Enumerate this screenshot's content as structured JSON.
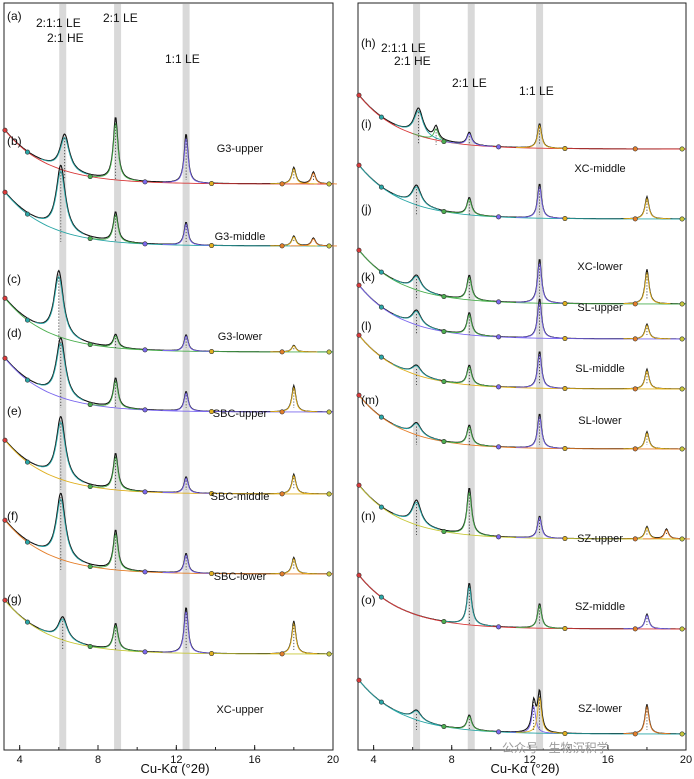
{
  "chart_data": [
    {
      "type": "line",
      "xlabel": "Cu-Kα (°2θ)",
      "xlim": [
        3.2,
        20
      ],
      "xticks": [
        4,
        8,
        12,
        16,
        20
      ],
      "reference_lines": [
        6.2,
        9.0,
        12.5
      ],
      "phase_labels": [
        "2:1:1 LE",
        "2:1 HE",
        "2:1 LE",
        "1:1 LE"
      ],
      "panels": [
        {
          "label": "(a)",
          "sample": "G3-upper",
          "peaks": [
            {
              "x": 6.3,
              "h": 0.55
            },
            {
              "x": 8.9,
              "h": 0.95
            },
            {
              "x": 12.5,
              "h": 0.75
            },
            {
              "x": 18.0,
              "h": 0.25
            },
            {
              "x": 19.0,
              "h": 0.18
            }
          ]
        },
        {
          "label": "(b)",
          "sample": "G3-middle",
          "peaks": [
            {
              "x": 6.1,
              "h": 1.0
            },
            {
              "x": 8.9,
              "h": 0.45
            },
            {
              "x": 12.5,
              "h": 0.35
            },
            {
              "x": 18.0,
              "h": 0.15
            },
            {
              "x": 19.0,
              "h": 0.12
            }
          ]
        },
        {
          "label": "(c)",
          "sample": "G3-lower",
          "peaks": [
            {
              "x": 6.0,
              "h": 1.0
            },
            {
              "x": 8.9,
              "h": 0.2
            },
            {
              "x": 12.5,
              "h": 0.25
            },
            {
              "x": 18.0,
              "h": 0.1
            }
          ]
        },
        {
          "label": "(d)",
          "sample": "SBC-upper",
          "peaks": [
            {
              "x": 6.1,
              "h": 0.9
            },
            {
              "x": 8.9,
              "h": 0.45
            },
            {
              "x": 12.5,
              "h": 0.3
            },
            {
              "x": 18.0,
              "h": 0.4
            }
          ]
        },
        {
          "label": "(e)",
          "sample": "SBC-middle",
          "peaks": [
            {
              "x": 6.1,
              "h": 0.95
            },
            {
              "x": 8.9,
              "h": 0.55
            },
            {
              "x": 12.5,
              "h": 0.25
            },
            {
              "x": 18.0,
              "h": 0.3
            }
          ]
        },
        {
          "label": "(f)",
          "sample": "SBC-lower",
          "peaks": [
            {
              "x": 6.1,
              "h": 1.0
            },
            {
              "x": 8.9,
              "h": 0.6
            },
            {
              "x": 12.5,
              "h": 0.3
            },
            {
              "x": 18.0,
              "h": 0.25
            }
          ]
        },
        {
          "label": "(g)",
          "sample": "XC-upper",
          "peaks": [
            {
              "x": 6.2,
              "h": 0.35
            },
            {
              "x": 8.9,
              "h": 0.4
            },
            {
              "x": 12.5,
              "h": 0.7
            },
            {
              "x": 18.0,
              "h": 0.5
            }
          ]
        },
        {
          "label": "(h)",
          "sample": "",
          "peaks": [
            {
              "x": 6.3,
              "h": 0.55
            },
            {
              "x": 7.2,
              "h": 0.25
            },
            {
              "x": 8.9,
              "h": 0.25
            },
            {
              "x": 12.5,
              "h": 0.5
            }
          ]
        },
        {
          "label": "(i)",
          "sample": "XC-middle",
          "peaks": [
            {
              "x": 6.2,
              "h": 0.4
            },
            {
              "x": 8.9,
              "h": 0.35
            },
            {
              "x": 12.5,
              "h": 0.7
            },
            {
              "x": 18.0,
              "h": 0.45
            }
          ]
        },
        {
          "label": "(j)",
          "sample": "XC-lower",
          "peaks": [
            {
              "x": 6.2,
              "h": 0.3
            },
            {
              "x": 8.9,
              "h": 0.5
            },
            {
              "x": 12.5,
              "h": 0.9
            },
            {
              "x": 18.0,
              "h": 0.7
            }
          ]
        },
        {
          "label": "(k)",
          "sample": "SL-upper",
          "peaks": [
            {
              "x": 6.2,
              "h": 0.3
            },
            {
              "x": 8.9,
              "h": 0.45
            },
            {
              "x": 12.5,
              "h": 0.8
            },
            {
              "x": 18.0,
              "h": 0.3
            }
          ]
        },
        {
          "label": "(l)",
          "sample": "SL-middle",
          "peaks": [
            {
              "x": 6.2,
              "h": 0.2
            },
            {
              "x": 8.9,
              "h": 0.4
            },
            {
              "x": 12.5,
              "h": 0.75
            },
            {
              "x": 18.0,
              "h": 0.4
            }
          ]
        },
        {
          "label": "(m)",
          "sample": "SL-lower",
          "peaks": [
            {
              "x": 6.2,
              "h": 0.25
            },
            {
              "x": 8.9,
              "h": 0.4
            },
            {
              "x": 12.5,
              "h": 0.7
            },
            {
              "x": 18.0,
              "h": 0.35
            }
          ]
        },
        {
          "label": "(n)",
          "sample": "SZ-upper",
          "peaks": [
            {
              "x": 6.2,
              "h": 0.5
            },
            {
              "x": 8.9,
              "h": 0.95
            },
            {
              "x": 12.5,
              "h": 0.45
            },
            {
              "x": 18.0,
              "h": 0.25
            },
            {
              "x": 19.0,
              "h": 0.2
            }
          ]
        },
        {
          "label": "(o)",
          "sample": "SZ-middle",
          "peaks": [
            {
              "x": 8.9,
              "h": 0.85
            },
            {
              "x": 12.5,
              "h": 0.5
            },
            {
              "x": 18.0,
              "h": 0.3
            }
          ]
        },
        {
          "label": "",
          "sample": "SZ-lower",
          "peaks": [
            {
              "x": 6.2,
              "h": 0.2
            },
            {
              "x": 8.9,
              "h": 0.3
            },
            {
              "x": 12.2,
              "h": 0.6
            },
            {
              "x": 12.5,
              "h": 0.8
            },
            {
              "x": 18.0,
              "h": 0.6
            }
          ]
        }
      ],
      "fit_colors": [
        "#d83a3a",
        "#2aa6a6",
        "#4caf50",
        "#7b68ee",
        "#e0b020",
        "#e57f2a",
        "#c8c83a"
      ]
    }
  ],
  "watermark": "公众号 · 生物沉积学"
}
